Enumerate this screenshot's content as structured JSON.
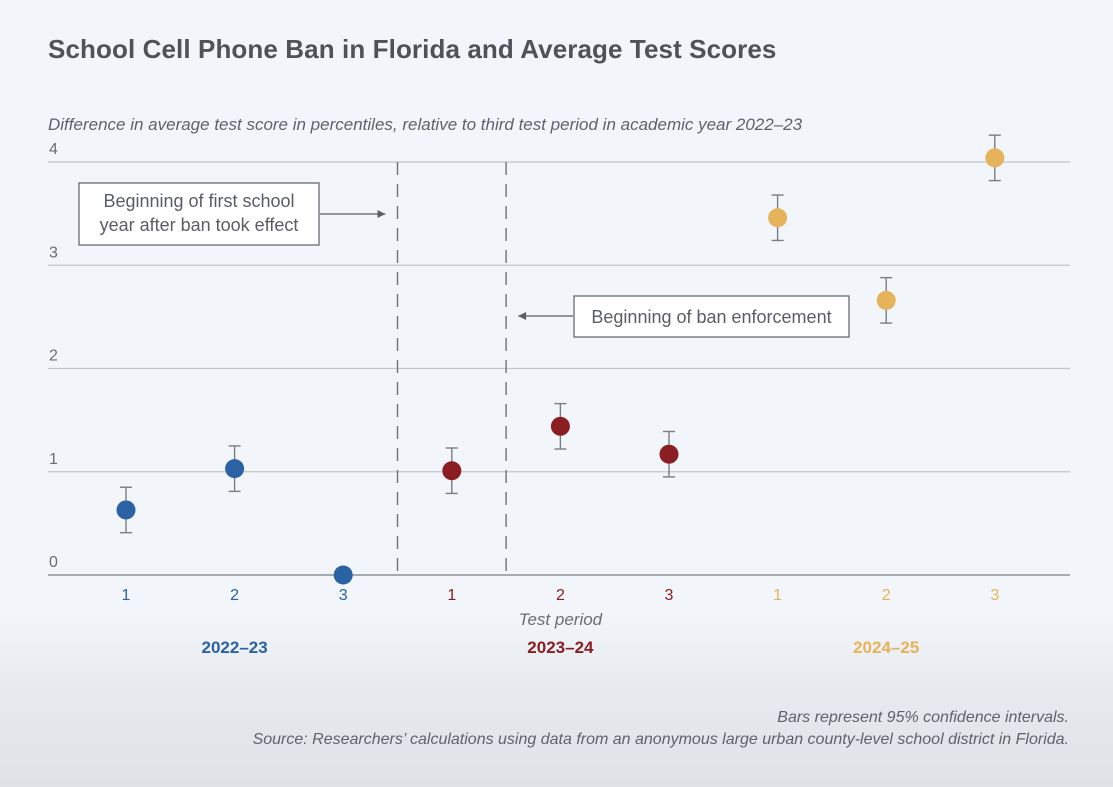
{
  "chart_data": {
    "type": "scatter",
    "title": "School Cell Phone Ban in Florida and Average Test Scores",
    "subtitle": "Difference in average test score in percentiles, relative to third test period in academic year 2022–23",
    "xlabel": "Test period",
    "ylabel": "",
    "ylim": [
      0,
      4
    ],
    "yticks": [
      "0",
      "1",
      "2",
      "3",
      "4"
    ],
    "grid": true,
    "groups": [
      {
        "name": "2022–23",
        "color": "#2a62a3",
        "periods": [
          "1",
          "2",
          "3"
        ],
        "values": [
          0.63,
          1.03,
          0.0
        ],
        "ci_low": [
          0.41,
          0.81,
          null
        ],
        "ci_high": [
          0.85,
          1.25,
          null
        ]
      },
      {
        "name": "2023–24",
        "color": "#8b1e22",
        "periods": [
          "1",
          "2",
          "3"
        ],
        "values": [
          1.01,
          1.44,
          1.17
        ],
        "ci_low": [
          0.79,
          1.22,
          0.95
        ],
        "ci_high": [
          1.23,
          1.66,
          1.39
        ]
      },
      {
        "name": "2024–25",
        "color": "#e7b35a",
        "periods": [
          "1",
          "2",
          "3"
        ],
        "values": [
          3.46,
          2.66,
          4.04
        ],
        "ci_low": [
          3.24,
          2.44,
          3.82
        ],
        "ci_high": [
          3.68,
          2.88,
          4.26
        ]
      }
    ],
    "vlines_between": [
      [
        2,
        3
      ],
      [
        3,
        4
      ]
    ],
    "annotations": [
      {
        "text_lines": [
          "Beginning of first school",
          "year after ban took effect"
        ]
      },
      {
        "text_lines": [
          "Beginning of ban enforcement"
        ]
      }
    ]
  },
  "footnotes": [
    "Bars represent 95% confidence intervals.",
    "Source: Researchers’ calculations using data from an anonymous large urban county-level school district in Florida."
  ]
}
